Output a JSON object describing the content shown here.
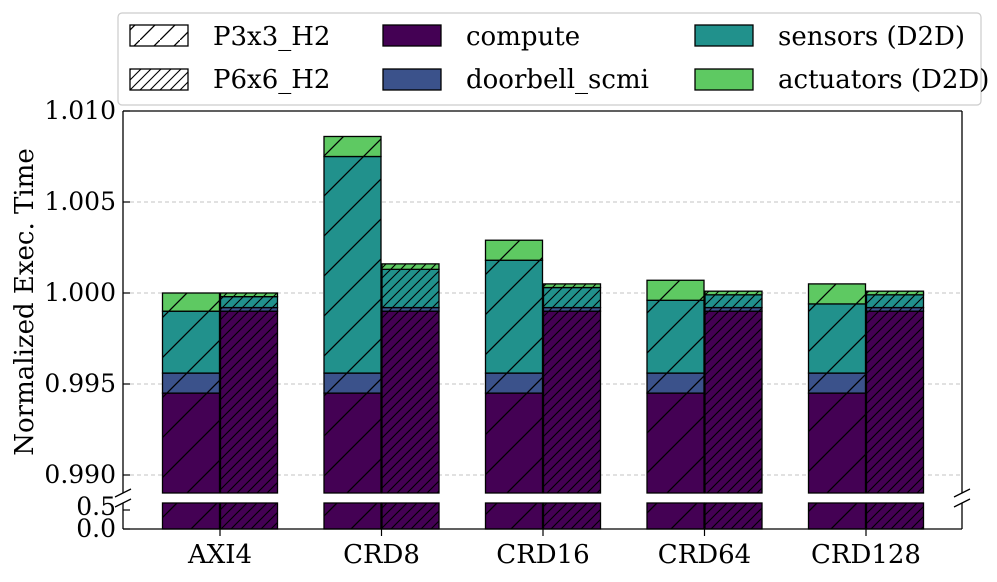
{
  "chart_data": {
    "type": "bar",
    "stacked": true,
    "categories": [
      "AXI4",
      "CRD8",
      "CRD16",
      "CRD64",
      "CRD128"
    ],
    "ylabel": "Normalized Exec. Time",
    "xlabel": "",
    "title": "",
    "y_axis_break": true,
    "ylim_upper": [
      0.99,
      1.01
    ],
    "ylim_lower": [
      0.0,
      0.5
    ],
    "yticks_upper": [
      "0.990",
      "0.995",
      "1.000",
      "1.005",
      "1.010"
    ],
    "yticks_lower": [
      "0.0",
      "0.5"
    ],
    "grid": "horizontal dashed",
    "legend_position": "top, above plot, 3 columns",
    "configurations": [
      {
        "name": "P3x3_H2",
        "hatch": "single-diagonal"
      },
      {
        "name": "P6x6_H2",
        "hatch": "dense-diagonal"
      }
    ],
    "components": [
      {
        "name": "compute",
        "color": "#440154"
      },
      {
        "name": "doorbell_scmi",
        "color": "#3b528b"
      },
      {
        "name": "sensors (D2D)",
        "color": "#21918c"
      },
      {
        "name": "actuators (D2D)",
        "color": "#5ec962"
      }
    ],
    "series": [
      {
        "configuration": "P3x3_H2",
        "component": "compute",
        "values": [
          0.9945,
          0.9945,
          0.9945,
          0.9945,
          0.9945
        ]
      },
      {
        "configuration": "P3x3_H2",
        "component": "doorbell_scmi",
        "values": [
          0.0011,
          0.0011,
          0.0011,
          0.0011,
          0.0011
        ]
      },
      {
        "configuration": "P3x3_H2",
        "component": "sensors (D2D)",
        "values": [
          0.0034,
          0.0119,
          0.0062,
          0.004,
          0.0038
        ]
      },
      {
        "configuration": "P3x3_H2",
        "component": "actuators (D2D)",
        "values": [
          0.001,
          0.0011,
          0.0011,
          0.0011,
          0.0011
        ]
      },
      {
        "configuration": "P6x6_H2",
        "component": "compute",
        "values": [
          0.999,
          0.999,
          0.999,
          0.999,
          0.999
        ]
      },
      {
        "configuration": "P6x6_H2",
        "component": "doorbell_scmi",
        "values": [
          0.0002,
          0.0002,
          0.0002,
          0.0002,
          0.0002
        ]
      },
      {
        "configuration": "P6x6_H2",
        "component": "sensors (D2D)",
        "values": [
          0.0006,
          0.0021,
          0.0011,
          0.0007,
          0.0007
        ]
      },
      {
        "configuration": "P6x6_H2",
        "component": "actuators (D2D)",
        "values": [
          0.0002,
          0.0003,
          0.0002,
          0.0002,
          0.0002
        ]
      }
    ]
  }
}
